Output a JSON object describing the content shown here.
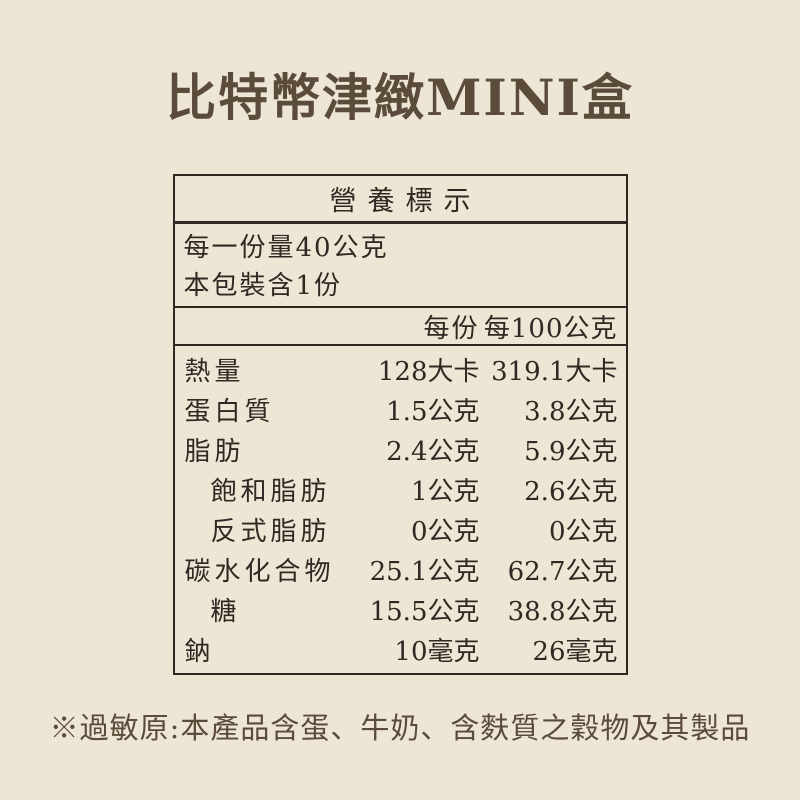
{
  "page": {
    "background_color": "#ede6d4",
    "text_color": "#2e2922",
    "accent_brown": "#5b4b3b",
    "border_color": "#2e2922"
  },
  "title": "比特幣津緻MINI盒",
  "table": {
    "header": "營養標示",
    "serving_lines": [
      "每一份量40公克",
      "本包裝含1份"
    ],
    "columns": [
      "每份",
      "每100公克"
    ],
    "rows": [
      {
        "label": "熱量",
        "indent": false,
        "per_serving": "128大卡",
        "per_100g": "319.1大卡"
      },
      {
        "label": "蛋白質",
        "indent": false,
        "per_serving": "1.5公克",
        "per_100g": "3.8公克"
      },
      {
        "label": "脂肪",
        "indent": false,
        "per_serving": "2.4公克",
        "per_100g": "5.9公克"
      },
      {
        "label": "飽和脂肪",
        "indent": true,
        "per_serving": "1公克",
        "per_100g": "2.6公克"
      },
      {
        "label": "反式脂肪",
        "indent": true,
        "per_serving": "0公克",
        "per_100g": "0公克"
      },
      {
        "label": "碳水化合物",
        "indent": false,
        "per_serving": "25.1公克",
        "per_100g": "62.7公克"
      },
      {
        "label": "糖",
        "indent": true,
        "per_serving": "15.5公克",
        "per_100g": "38.8公克"
      },
      {
        "label": "鈉",
        "indent": false,
        "per_serving": "10毫克",
        "per_100g": "26毫克"
      }
    ]
  },
  "footer": {
    "allergen_note": "※過敏原:本產品含蛋、牛奶、含麩質之穀物及其製品"
  }
}
